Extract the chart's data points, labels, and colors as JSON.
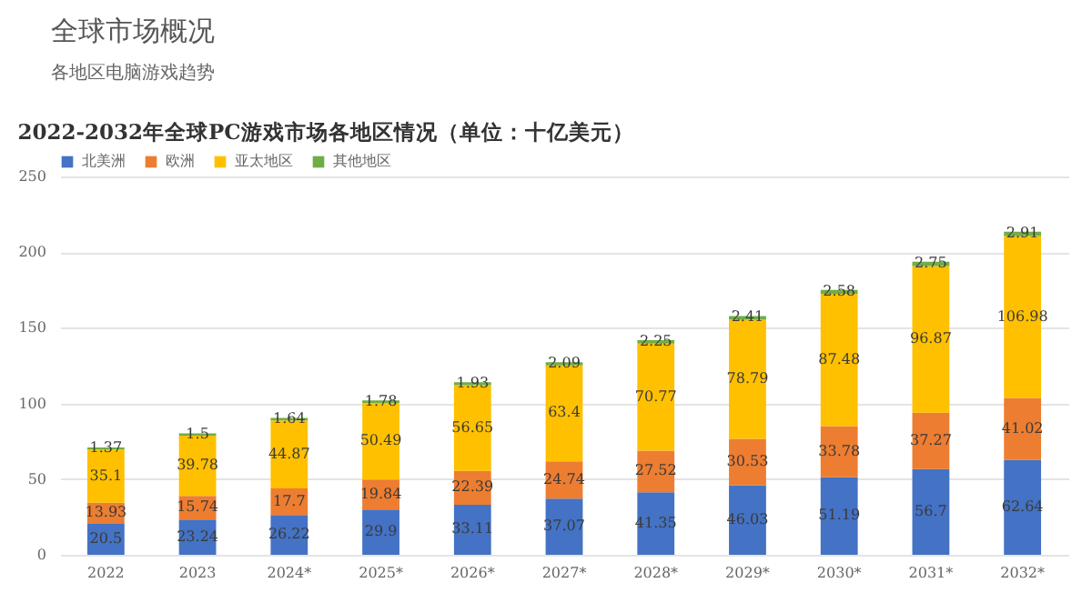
{
  "chart_data": {
    "type": "bar",
    "title": "2022-2032年全球PC游戏市场各地区情况（单位：十亿美元）",
    "annotations": [
      "全球市场概况",
      "各地区电脑游戏趋势"
    ],
    "categories": [
      "2022",
      "2023",
      "2024*",
      "2025*",
      "2026*",
      "2027*",
      "2028*",
      "2029*",
      "2030*",
      "2031*",
      "2032*"
    ],
    "stacked": true,
    "data_labels": true,
    "grid": "y",
    "legend": "top",
    "ylim": [
      0,
      250
    ],
    "yticks": [
      0,
      50,
      100,
      150,
      200,
      250
    ],
    "series": [
      {
        "name": "北美洲",
        "color": "#4472c4",
        "values": [
          20.5,
          23.24,
          26.22,
          29.9,
          33.11,
          37.07,
          41.35,
          46.03,
          51.19,
          56.7,
          62.64
        ]
      },
      {
        "name": "欧洲",
        "color": "#ed7d31",
        "values": [
          13.93,
          15.74,
          17.7,
          19.84,
          22.39,
          24.74,
          27.52,
          30.53,
          33.78,
          37.27,
          41.02
        ]
      },
      {
        "name": "亚太地区",
        "color": "#ffc000",
        "values": [
          35.1,
          39.78,
          44.87,
          50.49,
          56.65,
          63.4,
          70.77,
          78.79,
          87.48,
          96.87,
          106.98
        ]
      },
      {
        "name": "其他地区",
        "color": "#70ad47",
        "values": [
          1.37,
          1.5,
          1.64,
          1.78,
          1.93,
          2.09,
          2.25,
          2.41,
          2.58,
          2.75,
          2.91
        ]
      }
    ]
  }
}
